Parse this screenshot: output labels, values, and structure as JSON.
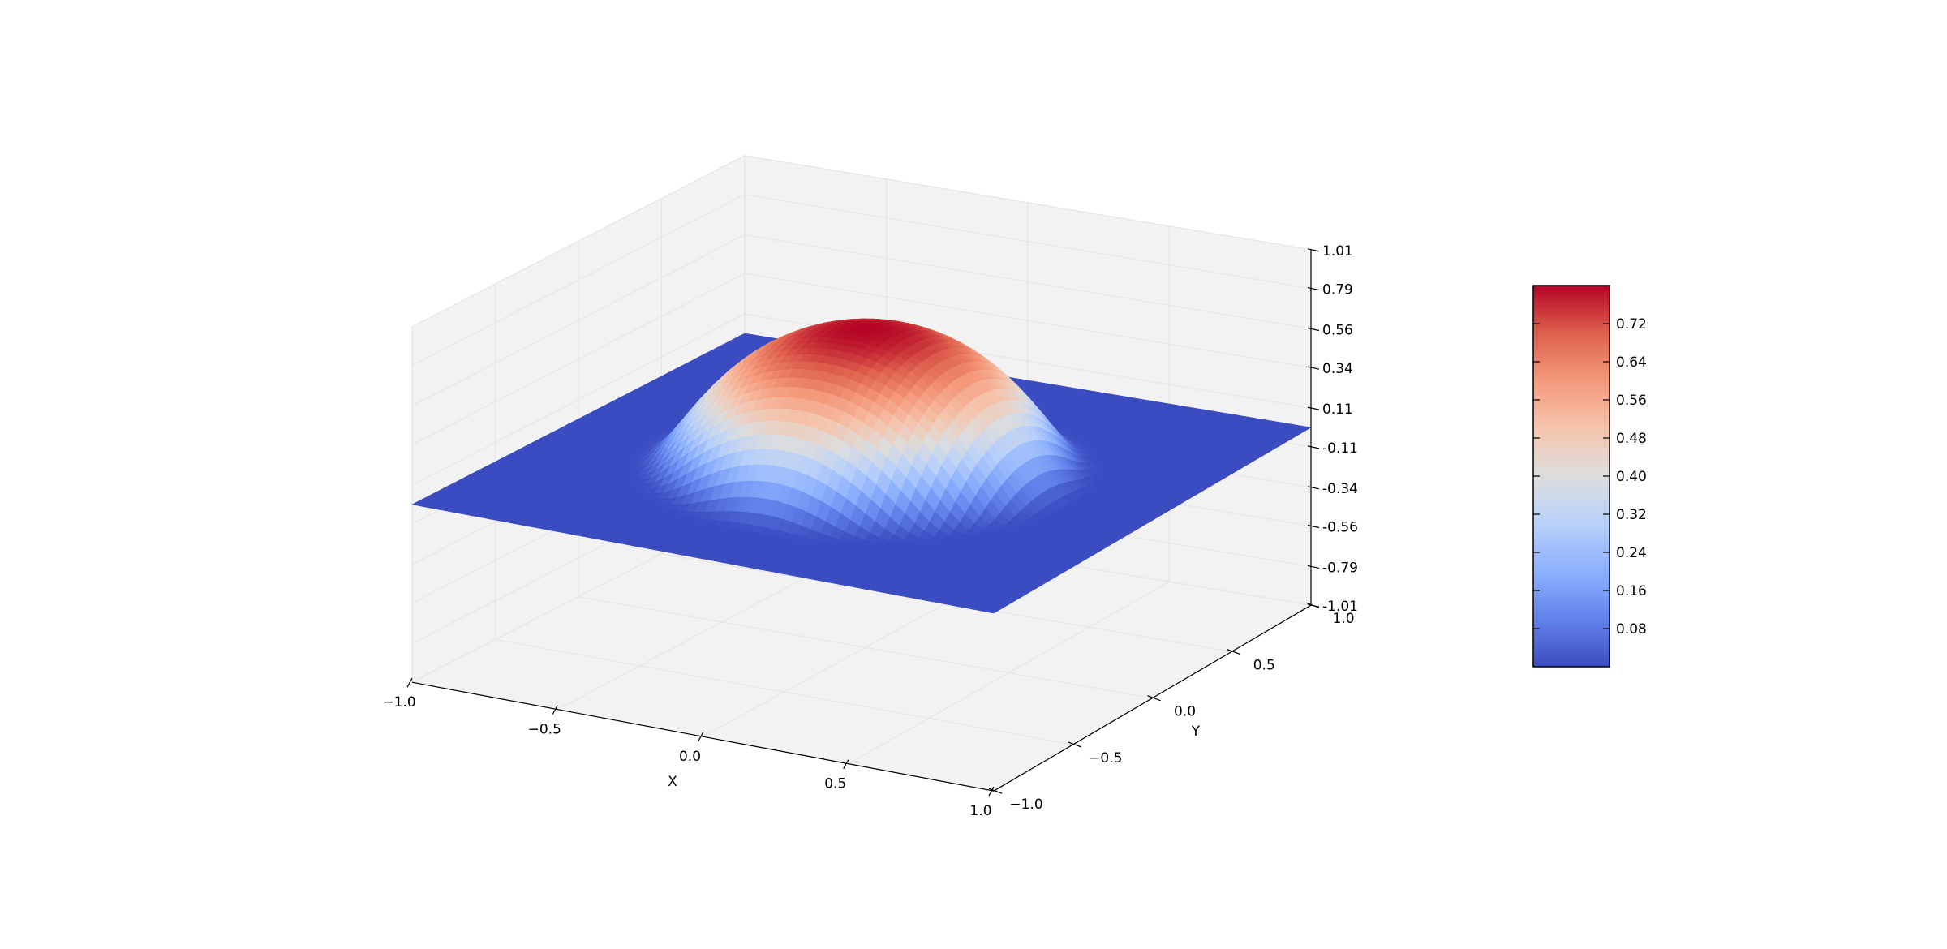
{
  "chart_data": {
    "type": "surface",
    "title": "",
    "xlabel": "X",
    "ylabel": "Y",
    "zlabel": "",
    "x_range": [
      -1.0,
      1.0
    ],
    "y_range": [
      -1.0,
      1.0
    ],
    "z_range": [
      -1.01,
      1.01
    ],
    "x_ticks": [
      "−1.0",
      "−0.5",
      "0.0",
      "0.5",
      "1.0"
    ],
    "y_ticks": [
      "−1.0",
      "−0.5",
      "0.0",
      "0.5",
      "1.0"
    ],
    "z_ticks": [
      "-1.01",
      "-0.79",
      "-0.56",
      "-0.34",
      "-0.11",
      "0.11",
      "0.34",
      "0.56",
      "0.79",
      "1.01"
    ],
    "colormap": "coolwarm",
    "colorbar_ticks": [
      "0.08",
      "0.16",
      "0.24",
      "0.32",
      "0.40",
      "0.48",
      "0.56",
      "0.64",
      "0.72"
    ],
    "colorbar_range": [
      0.0,
      0.8
    ],
    "surface": {
      "function": "bump",
      "peak_value": 0.8,
      "peak_at": [
        0.0,
        0.0
      ],
      "base_value": 0.0,
      "support_radius": 0.75
    },
    "grid": true,
    "pane_color": "#f2f2f2",
    "colors": {
      "low": "#3b4cc0",
      "mid": "#dddddd",
      "high": "#b40426"
    }
  }
}
